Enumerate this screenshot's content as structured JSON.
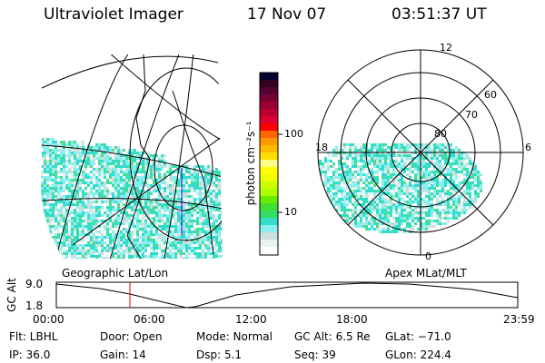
{
  "header": {
    "instrument": "Ultraviolet Imager",
    "date": "17 Nov 07",
    "time": "03:51:37 UT"
  },
  "geo_map": {
    "label": "Geographic Lat/Lon"
  },
  "polar_map": {
    "label": "Apex MLat/MLT",
    "mlt_labels": [
      "12",
      "18",
      "6",
      "0"
    ],
    "lat_labels": [
      "60",
      "70",
      "80"
    ]
  },
  "colorbar": {
    "unit_label": "photon cm⁻²s⁻¹",
    "tick_labels": [
      "100",
      "10"
    ],
    "colors": [
      "#000033",
      "#330022",
      "#550033",
      "#770033",
      "#990033",
      "#bb0033",
      "#dd0033",
      "#ff0000",
      "#ff6600",
      "#ff9900",
      "#ffbb00",
      "#ffdd00",
      "#ffff88",
      "#ffff00",
      "#eeff00",
      "#ccff00",
      "#aaff00",
      "#66ee00",
      "#44dd33",
      "#33dd66",
      "#33ddcc",
      "#88eeee",
      "#cce0e0",
      "#e8f4ee",
      "#ffffff"
    ]
  },
  "timeline": {
    "ylabel": "GC Alt",
    "ytick_labels": [
      "9.0",
      "1.8"
    ],
    "xtick_labels": [
      "00:00",
      "06:00",
      "12:00",
      "18:00",
      "23:59"
    ],
    "current_time": "03:51",
    "cursor_color": "#dd0000"
  },
  "status": {
    "row1": [
      "Flt: LBHL",
      "Door: Open",
      "Mode: Normal",
      "GC Alt: 6.5 Re",
      "GLat: −71.0"
    ],
    "row2": [
      "IP: 36.0",
      "Gain: 14",
      "Dsp:     5.1",
      "Seq: 39",
      "GLon: 224.4"
    ]
  }
}
